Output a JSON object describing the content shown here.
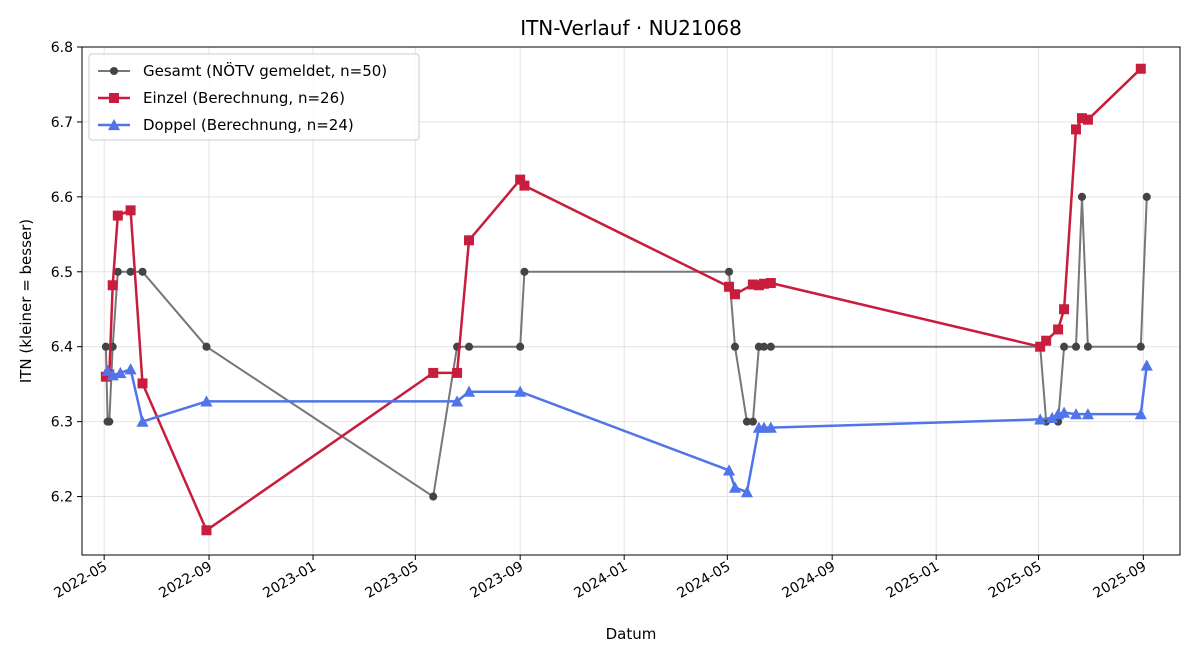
{
  "chart_data": {
    "type": "line",
    "title": "ITN-Verlauf · NU21068",
    "xlabel": "Datum",
    "ylabel": "ITN  (kleiner = besser)",
    "xlim": [
      "2022-04-05",
      "2025-10-14"
    ],
    "ylim": [
      6.122,
      6.8
    ],
    "grid": true,
    "legend_position": "top-left",
    "x_ticks": [
      "2022-05",
      "2022-09",
      "2023-01",
      "2023-05",
      "2023-09",
      "2024-01",
      "2024-05",
      "2024-09",
      "2025-01",
      "2025-05",
      "2025-09"
    ],
    "y_ticks": [
      "6.2",
      "6.3",
      "6.4",
      "6.5",
      "6.6",
      "6.7",
      "6.8"
    ],
    "series": [
      {
        "name": "Gesamt (NÖTV gemeldet, n=50)",
        "color": "#777777",
        "marker_color": "#444444",
        "marker": "circle",
        "points": [
          {
            "x": "2022-05-03",
            "y": 6.4
          },
          {
            "x": "2022-05-05",
            "y": 6.3
          },
          {
            "x": "2022-05-07",
            "y": 6.3
          },
          {
            "x": "2022-05-11",
            "y": 6.4
          },
          {
            "x": "2022-05-17",
            "y": 6.5
          },
          {
            "x": "2022-06-01",
            "y": 6.5
          },
          {
            "x": "2022-06-15",
            "y": 6.5
          },
          {
            "x": "2022-08-29",
            "y": 6.4
          },
          {
            "x": "2023-05-22",
            "y": 6.2
          },
          {
            "x": "2023-06-19",
            "y": 6.4
          },
          {
            "x": "2023-07-03",
            "y": 6.4
          },
          {
            "x": "2023-09-01",
            "y": 6.4
          },
          {
            "x": "2023-09-06",
            "y": 6.5
          },
          {
            "x": "2024-05-03",
            "y": 6.5
          },
          {
            "x": "2024-05-10",
            "y": 6.4
          },
          {
            "x": "2024-05-24",
            "y": 6.3
          },
          {
            "x": "2024-05-31",
            "y": 6.3
          },
          {
            "x": "2024-06-07",
            "y": 6.4
          },
          {
            "x": "2024-06-13",
            "y": 6.4
          },
          {
            "x": "2024-06-21",
            "y": 6.4
          },
          {
            "x": "2025-05-03",
            "y": 6.4
          },
          {
            "x": "2025-05-10",
            "y": 6.3
          },
          {
            "x": "2025-05-24",
            "y": 6.3
          },
          {
            "x": "2025-05-31",
            "y": 6.4
          },
          {
            "x": "2025-06-14",
            "y": 6.4
          },
          {
            "x": "2025-06-21",
            "y": 6.6
          },
          {
            "x": "2025-06-28",
            "y": 6.4
          },
          {
            "x": "2025-08-29",
            "y": 6.4
          },
          {
            "x": "2025-09-05",
            "y": 6.6
          }
        ]
      },
      {
        "name": "Einzel (Berechnung, n=26)",
        "color": "#c81d3c",
        "marker_color": "#c81d3c",
        "marker": "square",
        "points": [
          {
            "x": "2022-05-03",
            "y": 6.36
          },
          {
            "x": "2022-05-07",
            "y": 6.363
          },
          {
            "x": "2022-05-11",
            "y": 6.482
          },
          {
            "x": "2022-05-17",
            "y": 6.575
          },
          {
            "x": "2022-06-01",
            "y": 6.582
          },
          {
            "x": "2022-06-15",
            "y": 6.351
          },
          {
            "x": "2022-08-29",
            "y": 6.155
          },
          {
            "x": "2023-05-22",
            "y": 6.365
          },
          {
            "x": "2023-06-19",
            "y": 6.365
          },
          {
            "x": "2023-07-03",
            "y": 6.542
          },
          {
            "x": "2023-09-01",
            "y": 6.623
          },
          {
            "x": "2023-09-06",
            "y": 6.615
          },
          {
            "x": "2024-05-03",
            "y": 6.48
          },
          {
            "x": "2024-05-10",
            "y": 6.47
          },
          {
            "x": "2024-05-31",
            "y": 6.483
          },
          {
            "x": "2024-06-07",
            "y": 6.482
          },
          {
            "x": "2024-06-13",
            "y": 6.484
          },
          {
            "x": "2024-06-21",
            "y": 6.485
          },
          {
            "x": "2025-05-03",
            "y": 6.4
          },
          {
            "x": "2025-05-10",
            "y": 6.408
          },
          {
            "x": "2025-05-24",
            "y": 6.423
          },
          {
            "x": "2025-05-31",
            "y": 6.45
          },
          {
            "x": "2025-06-14",
            "y": 6.69
          },
          {
            "x": "2025-06-21",
            "y": 6.705
          },
          {
            "x": "2025-06-28",
            "y": 6.703
          },
          {
            "x": "2025-08-29",
            "y": 6.771
          }
        ]
      },
      {
        "name": "Doppel (Berechnung, n=24)",
        "color": "#5174e8",
        "marker_color": "#5174e8",
        "marker": "triangle",
        "points": [
          {
            "x": "2022-05-05",
            "y": 6.368
          },
          {
            "x": "2022-05-11",
            "y": 6.362
          },
          {
            "x": "2022-05-20",
            "y": 6.365
          },
          {
            "x": "2022-06-01",
            "y": 6.37
          },
          {
            "x": "2022-06-15",
            "y": 6.3
          },
          {
            "x": "2022-08-29",
            "y": 6.327
          },
          {
            "x": "2023-06-19",
            "y": 6.327
          },
          {
            "x": "2023-07-03",
            "y": 6.34
          },
          {
            "x": "2023-09-01",
            "y": 6.34
          },
          {
            "x": "2024-05-03",
            "y": 6.235
          },
          {
            "x": "2024-05-10",
            "y": 6.212
          },
          {
            "x": "2024-05-24",
            "y": 6.206
          },
          {
            "x": "2024-06-07",
            "y": 6.292
          },
          {
            "x": "2024-06-13",
            "y": 6.292
          },
          {
            "x": "2024-06-21",
            "y": 6.292
          },
          {
            "x": "2025-05-03",
            "y": 6.303
          },
          {
            "x": "2025-05-17",
            "y": 6.305
          },
          {
            "x": "2025-05-24",
            "y": 6.31
          },
          {
            "x": "2025-05-31",
            "y": 6.312
          },
          {
            "x": "2025-06-14",
            "y": 6.31
          },
          {
            "x": "2025-06-28",
            "y": 6.31
          },
          {
            "x": "2025-08-29",
            "y": 6.31
          },
          {
            "x": "2025-09-05",
            "y": 6.375
          }
        ]
      }
    ]
  }
}
